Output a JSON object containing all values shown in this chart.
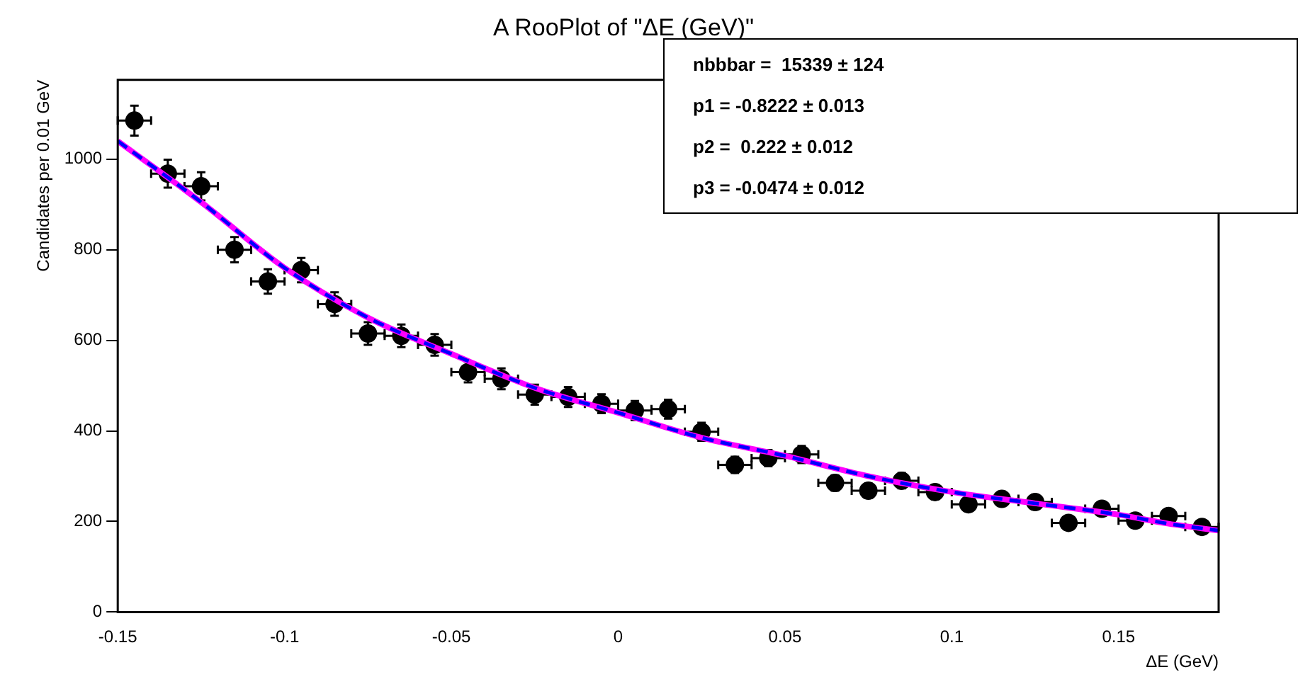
{
  "chart_data": {
    "type": "scatter",
    "title": "A RooPlot of \"ΔE (GeV)\"",
    "xlabel": "ΔE (GeV)",
    "ylabel": "Candidates per 0.01 GeV",
    "annotations": [
      "nbbbar =  15339 ± 124",
      "p1 = -0.8222 ± 0.013",
      "p2 =  0.222 ± 0.012",
      "p3 = -0.0474 ± 0.012"
    ],
    "xlim": [
      -0.15,
      0.18
    ],
    "xticks": [
      -0.15,
      -0.1,
      -0.05,
      0,
      0.05,
      0.1,
      0.15
    ],
    "ylim": [
      0,
      1175
    ],
    "yticks": [
      0,
      200,
      400,
      600,
      800,
      1000
    ],
    "grid": false,
    "legend": false,
    "marker": "circle",
    "series": [
      {
        "color": "#000000",
        "x": [
          -0.145,
          -0.135,
          -0.125,
          -0.115,
          -0.105,
          -0.095,
          -0.085,
          -0.075,
          -0.065,
          -0.055,
          -0.045,
          -0.035,
          -0.025,
          -0.015,
          -0.005,
          0.005,
          0.015,
          0.025,
          0.035,
          0.045,
          0.055,
          0.065,
          0.075,
          0.085,
          0.095,
          0.105,
          0.115,
          0.125,
          0.135,
          0.145,
          0.155,
          0.165,
          0.175
        ],
        "values": [
          1085,
          968,
          940,
          800,
          730,
          755,
          680,
          615,
          610,
          590,
          530,
          515,
          480,
          475,
          460,
          445,
          448,
          398,
          325,
          340,
          348,
          285,
          268,
          290,
          265,
          238,
          250,
          243,
          197,
          228,
          202,
          212,
          188
        ],
        "errors": [
          33,
          31,
          31,
          28,
          27,
          27,
          26,
          25,
          25,
          24,
          23,
          23,
          22,
          22,
          21,
          21,
          21,
          20,
          18,
          18,
          19,
          17,
          16,
          17,
          16,
          15,
          16,
          16,
          14,
          15,
          14,
          15,
          14
        ],
        "xerrors": [
          0.005,
          0.005,
          0.005,
          0.005,
          0.005,
          0.005,
          0.005,
          0.005,
          0.005,
          0.005,
          0.005,
          0.005,
          0.005,
          0.005,
          0.005,
          0.005,
          0.005,
          0.005,
          0.005,
          0.005,
          0.005,
          0.005,
          0.005,
          0.005,
          0.005,
          0.005,
          0.005,
          0.005,
          0.005,
          0.005,
          0.005,
          0.005,
          0.005
        ]
      },
      {
        "type": "line",
        "color": "#ff00ff",
        "line_style": "solid",
        "marker": "none",
        "x": [
          -0.15,
          -0.125,
          -0.1,
          -0.075,
          -0.05,
          -0.025,
          0,
          0.025,
          0.05,
          0.075,
          0.1,
          0.125,
          0.15,
          0.165,
          0.18
        ],
        "values": [
          1040,
          905,
          760,
          650,
          570,
          495,
          440,
          385,
          345,
          300,
          265,
          240,
          215,
          195,
          180
        ]
      },
      {
        "type": "line",
        "color": "#0000ff",
        "line_style": "dashed",
        "marker": "none",
        "x": [
          -0.15,
          -0.125,
          -0.1,
          -0.075,
          -0.05,
          -0.025,
          0,
          0.025,
          0.05,
          0.075,
          0.1,
          0.125,
          0.15,
          0.165,
          0.18
        ],
        "values": [
          1040,
          905,
          760,
          650,
          570,
          495,
          440,
          385,
          345,
          300,
          265,
          240,
          215,
          195,
          180
        ]
      }
    ]
  }
}
